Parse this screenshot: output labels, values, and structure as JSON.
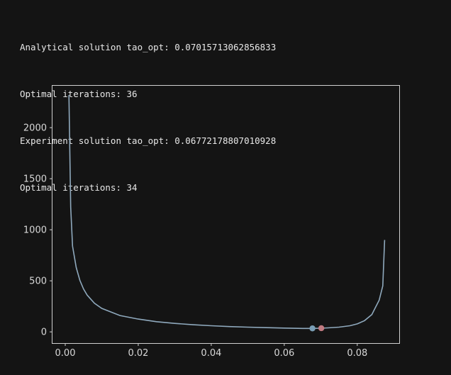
{
  "output": {
    "lines": [
      "Analytical solution tao_opt: 0.07015713062856833",
      "Optimal iterations: 36",
      "Experiment solution tao_opt: 0.06772178807010928",
      "Optimal iterations: 34"
    ]
  },
  "colors": {
    "background": "#141414",
    "text": "#e8e8e8",
    "axes": "#d0d0d0",
    "line": "#8fa9bd",
    "experiment_point": "#7a9eb5",
    "analytical_point": "#c07a80"
  },
  "chart_data": {
    "type": "line",
    "title": "",
    "xlabel": "",
    "ylabel": "",
    "xlim": [
      -0.0035,
      0.0915
    ],
    "ylim": [
      -110,
      2410
    ],
    "xticks": [
      0.0,
      0.02,
      0.04,
      0.06,
      0.08
    ],
    "xtick_labels": [
      "0.00",
      "0.02",
      "0.04",
      "0.06",
      "0.08"
    ],
    "yticks": [
      0,
      500,
      1000,
      1500,
      2000
    ],
    "ytick_labels": [
      "0",
      "500",
      "1000",
      "1500",
      "2000"
    ],
    "grid": false,
    "series": [
      {
        "x": [
          0.001,
          0.0015,
          0.002,
          0.003,
          0.004,
          0.005,
          0.006,
          0.008,
          0.01,
          0.015,
          0.02,
          0.025,
          0.03,
          0.035,
          0.04,
          0.045,
          0.05,
          0.055,
          0.06,
          0.065,
          0.0677,
          0.07,
          0.072,
          0.075,
          0.078,
          0.08,
          0.082,
          0.084,
          0.085,
          0.086,
          0.087,
          0.0875
        ],
        "values": [
          2320,
          1220,
          840,
          630,
          505,
          420,
          360,
          280,
          230,
          160,
          125,
          100,
          83,
          70,
          60,
          52,
          46,
          41,
          37,
          34,
          34,
          36,
          39,
          46,
          60,
          78,
          110,
          170,
          240,
          310,
          450,
          900
        ]
      }
    ],
    "points": [
      {
        "x": 0.06772178807010928,
        "y": 34,
        "label": "experiment"
      },
      {
        "x": 0.07015713062856833,
        "y": 36,
        "label": "analytical"
      }
    ]
  }
}
